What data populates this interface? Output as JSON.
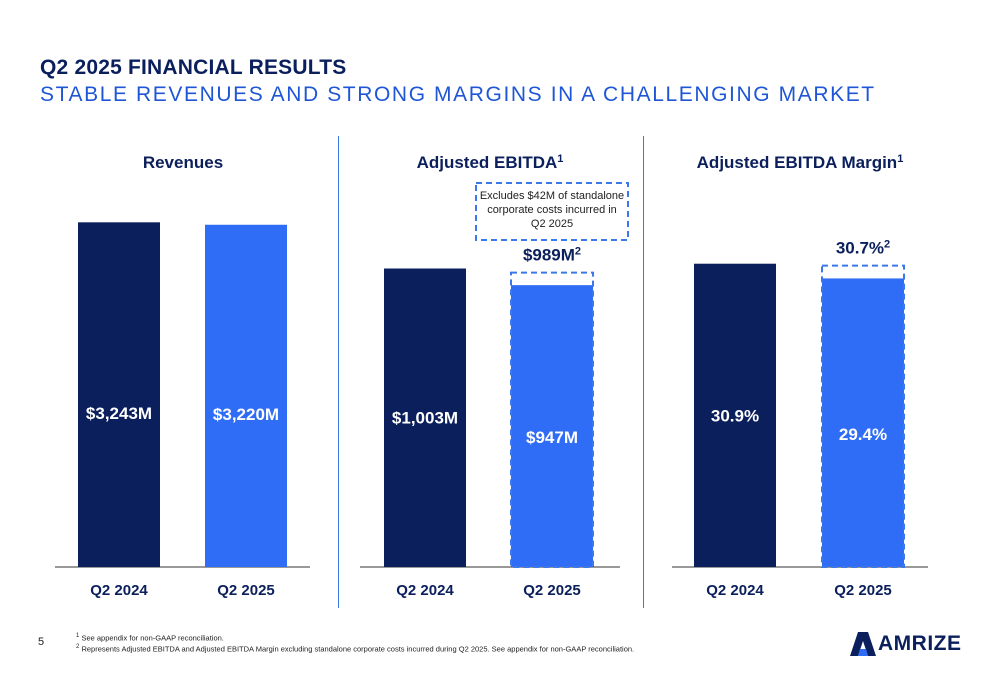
{
  "header": {
    "title": "Q2 2025 FINANCIAL RESULTS",
    "subtitle": "STABLE REVENUES AND STRONG MARGINS IN A CHALLENGING MARKET"
  },
  "colors": {
    "navy": "#0b1f5c",
    "blue": "#2f6df6",
    "accent": "#3b78e8"
  },
  "chart_data": [
    {
      "type": "bar",
      "title": "Revenues",
      "title_sup": "",
      "categories": [
        "Q2 2024",
        "Q2 2025"
      ],
      "values": [
        3243,
        3220
      ],
      "value_labels": [
        "$3,243M",
        "$3,220M"
      ],
      "unit": "$M",
      "ylim": [
        0,
        3500
      ]
    },
    {
      "type": "bar",
      "title": "Adjusted EBITDA",
      "title_sup": "1",
      "categories": [
        "Q2 2024",
        "Q2 2025"
      ],
      "values": [
        1003,
        947
      ],
      "value_labels": [
        "$1,003M",
        "$947M"
      ],
      "unit": "$M",
      "ylim": [
        0,
        1250
      ],
      "adjusted": {
        "value": 989,
        "label": "$989M",
        "sup": "2"
      },
      "callout": "Excludes $42M of standalone corporate costs incurred in Q2 2025"
    },
    {
      "type": "bar",
      "title": "Adjusted EBITDA Margin",
      "title_sup": "1",
      "categories": [
        "Q2 2024",
        "Q2 2025"
      ],
      "values": [
        30.9,
        29.4
      ],
      "value_labels": [
        "30.9%",
        "29.4%"
      ],
      "unit": "%",
      "ylim": [
        0,
        37.9
      ],
      "adjusted": {
        "value": 30.7,
        "label": "30.7%",
        "sup": "2"
      }
    }
  ],
  "footnotes": [
    {
      "sup": "1",
      "text": "See appendix for non-GAAP reconciliation."
    },
    {
      "sup": "2",
      "text": "Represents Adjusted EBITDA and Adjusted EBITDA Margin excluding standalone corporate costs incurred during Q2 2025. See appendix for non-GAAP reconciliation."
    }
  ],
  "page_number": "5",
  "logo": {
    "text": "AMRIZE",
    "icon": "amrize-logo-mark-icon"
  }
}
